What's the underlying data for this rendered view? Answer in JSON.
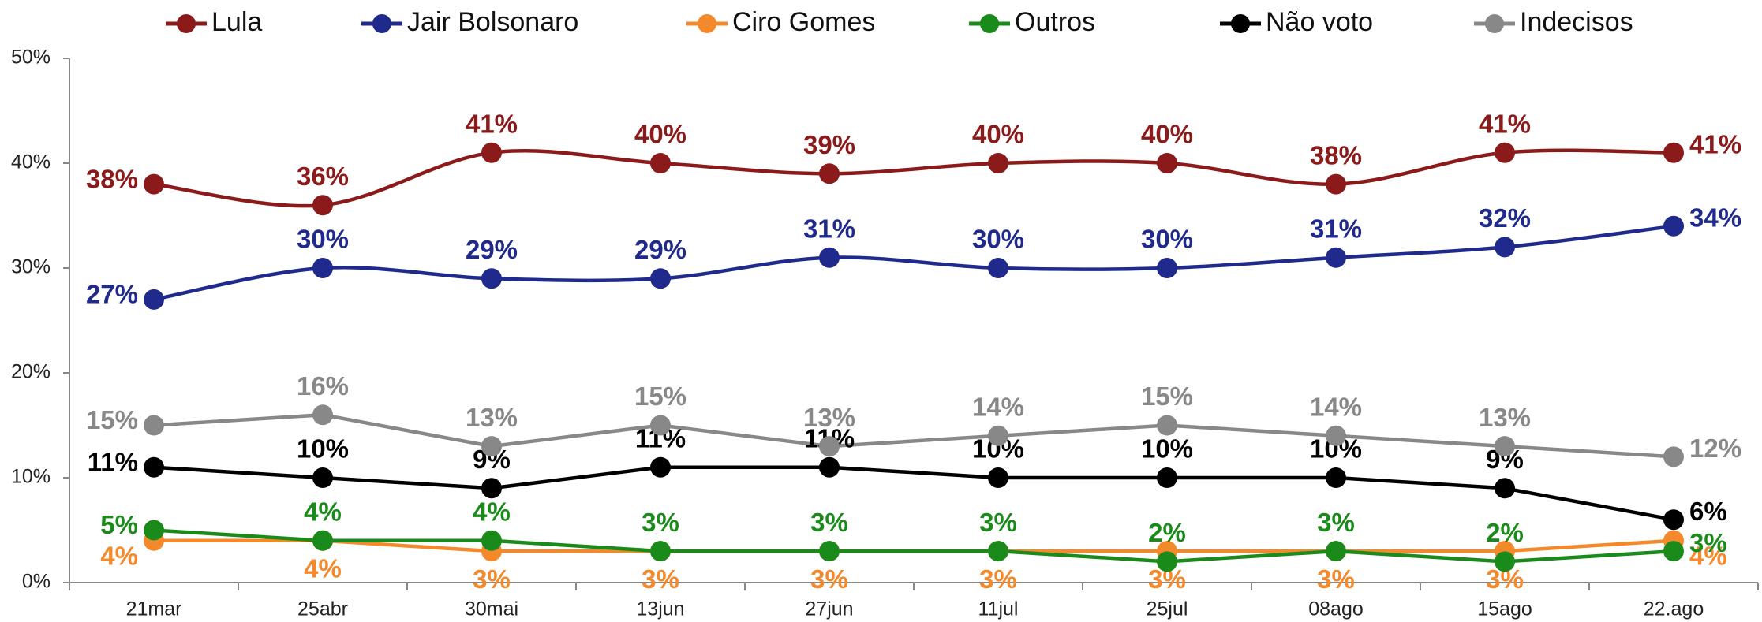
{
  "chart_data": {
    "type": "line",
    "categories": [
      "21mar",
      "25abr",
      "30mai",
      "13jun",
      "27jun",
      "11jul",
      "25jul",
      "08ago",
      "15ago",
      "22.ago"
    ],
    "ylim": [
      0,
      50
    ],
    "yticks": [
      {
        "value": 0,
        "label": "0%"
      },
      {
        "value": 10,
        "label": "10%"
      },
      {
        "value": 20,
        "label": "20%"
      },
      {
        "value": 30,
        "label": "30%"
      },
      {
        "value": 40,
        "label": "40%"
      },
      {
        "value": 50,
        "label": "50%"
      }
    ],
    "legend": "top",
    "series": [
      {
        "name": "Lula",
        "color": "#8b1a1a",
        "smooth": true,
        "values": [
          38,
          36,
          41,
          40,
          39,
          40,
          40,
          38,
          41,
          41
        ],
        "value_labels": [
          "38%",
          "36%",
          "41%",
          "40%",
          "39%",
          "40%",
          "40%",
          "38%",
          "41%",
          "41%"
        ]
      },
      {
        "name": "Jair Bolsonaro",
        "color": "#1f2a8c",
        "smooth": true,
        "values": [
          27,
          30,
          29,
          29,
          31,
          30,
          30,
          31,
          32,
          34
        ],
        "value_labels": [
          "27%",
          "30%",
          "29%",
          "29%",
          "31%",
          "30%",
          "30%",
          "31%",
          "32%",
          "34%"
        ]
      },
      {
        "name": "Ciro Gomes",
        "color": "#f4892c",
        "smooth": false,
        "values": [
          4,
          4,
          3,
          3,
          3,
          3,
          3,
          3,
          3,
          4
        ],
        "value_labels": [
          "4%",
          "4%",
          "3%",
          "3%",
          "3%",
          "3%",
          "3%",
          "3%",
          "3%",
          "4%"
        ]
      },
      {
        "name": "Outros",
        "color": "#1a8a1a",
        "smooth": false,
        "values": [
          5,
          4,
          4,
          3,
          3,
          3,
          2,
          3,
          2,
          3
        ],
        "value_labels": [
          "5%",
          "4%",
          "4%",
          "3%",
          "3%",
          "3%",
          "2%",
          "3%",
          "2%",
          "3%"
        ]
      },
      {
        "name": "Não voto",
        "color": "#000000",
        "smooth": false,
        "values": [
          11,
          10,
          9,
          11,
          11,
          10,
          10,
          10,
          9,
          6
        ],
        "value_labels": [
          "11%",
          "10%",
          "9%",
          "11%",
          "11%",
          "10%",
          "10%",
          "10%",
          "9%",
          "6%"
        ]
      },
      {
        "name": "Indecisos",
        "color": "#888888",
        "smooth": false,
        "values": [
          15,
          16,
          13,
          15,
          13,
          14,
          15,
          14,
          13,
          12
        ],
        "value_labels": [
          "15%",
          "16%",
          "13%",
          "15%",
          "13%",
          "14%",
          "15%",
          "14%",
          "13%",
          "12%"
        ]
      }
    ]
  }
}
